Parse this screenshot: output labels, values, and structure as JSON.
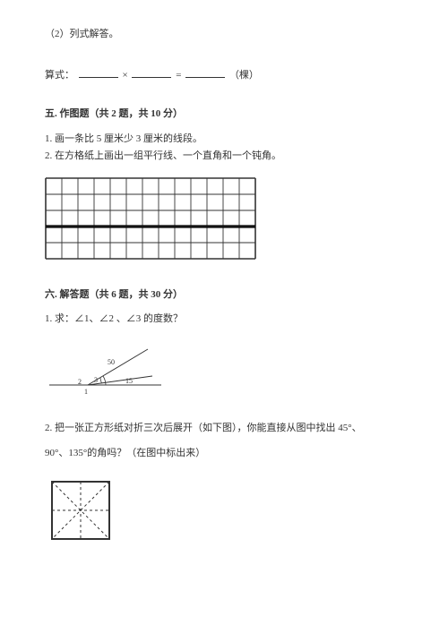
{
  "q2_prefix": "（2）列式解答。",
  "formula": {
    "label": "算式：",
    "op": "×",
    "eq": "=",
    "unit": "（棵）"
  },
  "section5": {
    "title": "五. 作图题（共 2 题，共 10 分）",
    "q1": "1. 画一条比 5 厘米少 3 厘米的线段。",
    "q2": "2. 在方格纸上画出一组平行线、一个直角和一个钝角。"
  },
  "section6": {
    "title": "六. 解答题（共 6 题，共 30 分）",
    "q1": "1. 求：∠1、∠2 、∠3 的度数？",
    "q2a": "2. 把一张正方形纸对折三次后展开（如下图），你能直接从图中找出 45°、",
    "q2b": "90°、135°的角吗？（在图中标出来）"
  },
  "angle_labels": {
    "a50": "50",
    "a15": "15",
    "n1": "1",
    "n2": "2",
    "n3": "3"
  },
  "grid": {
    "cols": 13,
    "rows": 5,
    "cell": 18,
    "stroke": "#333",
    "mid_stroke": "#000"
  },
  "angle_fig": {
    "stroke": "#333"
  },
  "square_fig": {
    "stroke": "#333",
    "dash": "3,3",
    "border_w": 2
  }
}
